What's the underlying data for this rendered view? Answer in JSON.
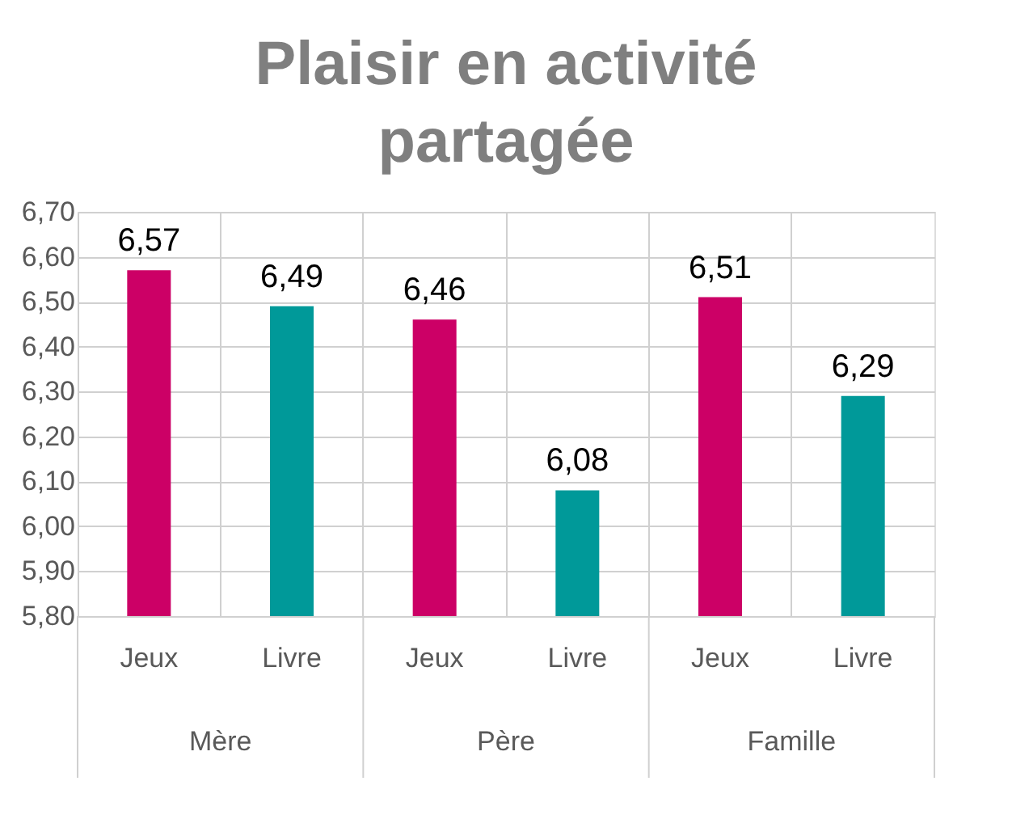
{
  "chart_data": {
    "type": "bar",
    "title": "Plaisir en activité partagée",
    "categories": [
      "Jeux",
      "Livre",
      "Jeux",
      "Livre",
      "Jeux",
      "Livre"
    ],
    "values": [
      6.57,
      6.49,
      6.46,
      6.08,
      6.51,
      6.29
    ],
    "colors": [
      "#cc0066",
      "#009999",
      "#cc0066",
      "#009999",
      "#cc0066",
      "#009999"
    ],
    "value_labels": [
      "6,57",
      "6,49",
      "6,46",
      "6,08",
      "6,51",
      "6,29"
    ],
    "annotations": [
      "Mère",
      "Père",
      "Famille"
    ],
    "ylim": [
      5.8,
      6.7
    ],
    "yticks": [
      {
        "value": 5.8,
        "label": "5,80"
      },
      {
        "value": 5.9,
        "label": "5,90"
      },
      {
        "value": 6.0,
        "label": "6,00"
      },
      {
        "value": 6.1,
        "label": "6,10"
      },
      {
        "value": 6.2,
        "label": "6,20"
      },
      {
        "value": 6.3,
        "label": "6,30"
      },
      {
        "value": 6.4,
        "label": "6,40"
      },
      {
        "value": 6.5,
        "label": "6,50"
      },
      {
        "value": 6.6,
        "label": "6,60"
      },
      {
        "value": 6.7,
        "label": "6,70"
      }
    ],
    "grid": true
  }
}
